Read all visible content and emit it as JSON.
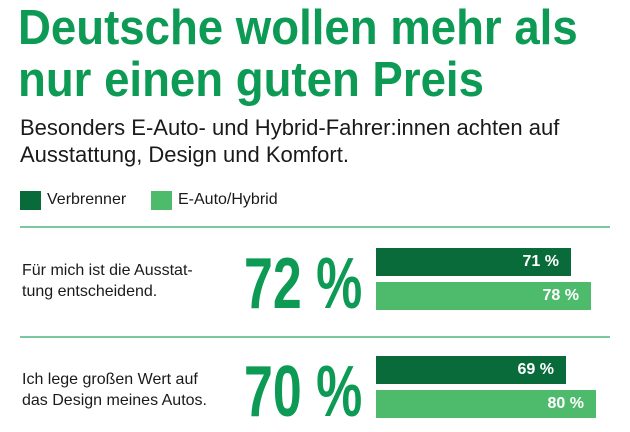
{
  "title_lines": [
    "Deutsche wollen mehr als",
    "nur einen guten Preis"
  ],
  "subtitle_lines": [
    "Besonders E-Auto- und Hybrid-Fahrer:innen achten auf",
    "Ausstattung, Design und Komfort."
  ],
  "colors": {
    "title": "#0c9a55",
    "verbrenner": "#0a6b3a",
    "ehybrid": "#4dba6c",
    "rule": "#7dc79e"
  },
  "chart_data": {
    "type": "bar",
    "series_names": [
      "Verbrenner",
      "E-Auto/Hybrid"
    ],
    "categories": [
      {
        "statement_lines": [
          "Für mich ist die Ausstat-",
          "tung entscheidend."
        ],
        "total_label": "72 %",
        "values": [
          71,
          78
        ],
        "labels": [
          "71 %",
          "78 %"
        ]
      },
      {
        "statement_lines": [
          "Ich lege großen Wert auf",
          "das Design meines Autos."
        ],
        "total_label": "70 %",
        "values": [
          69,
          80
        ],
        "labels": [
          "69 %",
          "80 %"
        ]
      }
    ]
  }
}
